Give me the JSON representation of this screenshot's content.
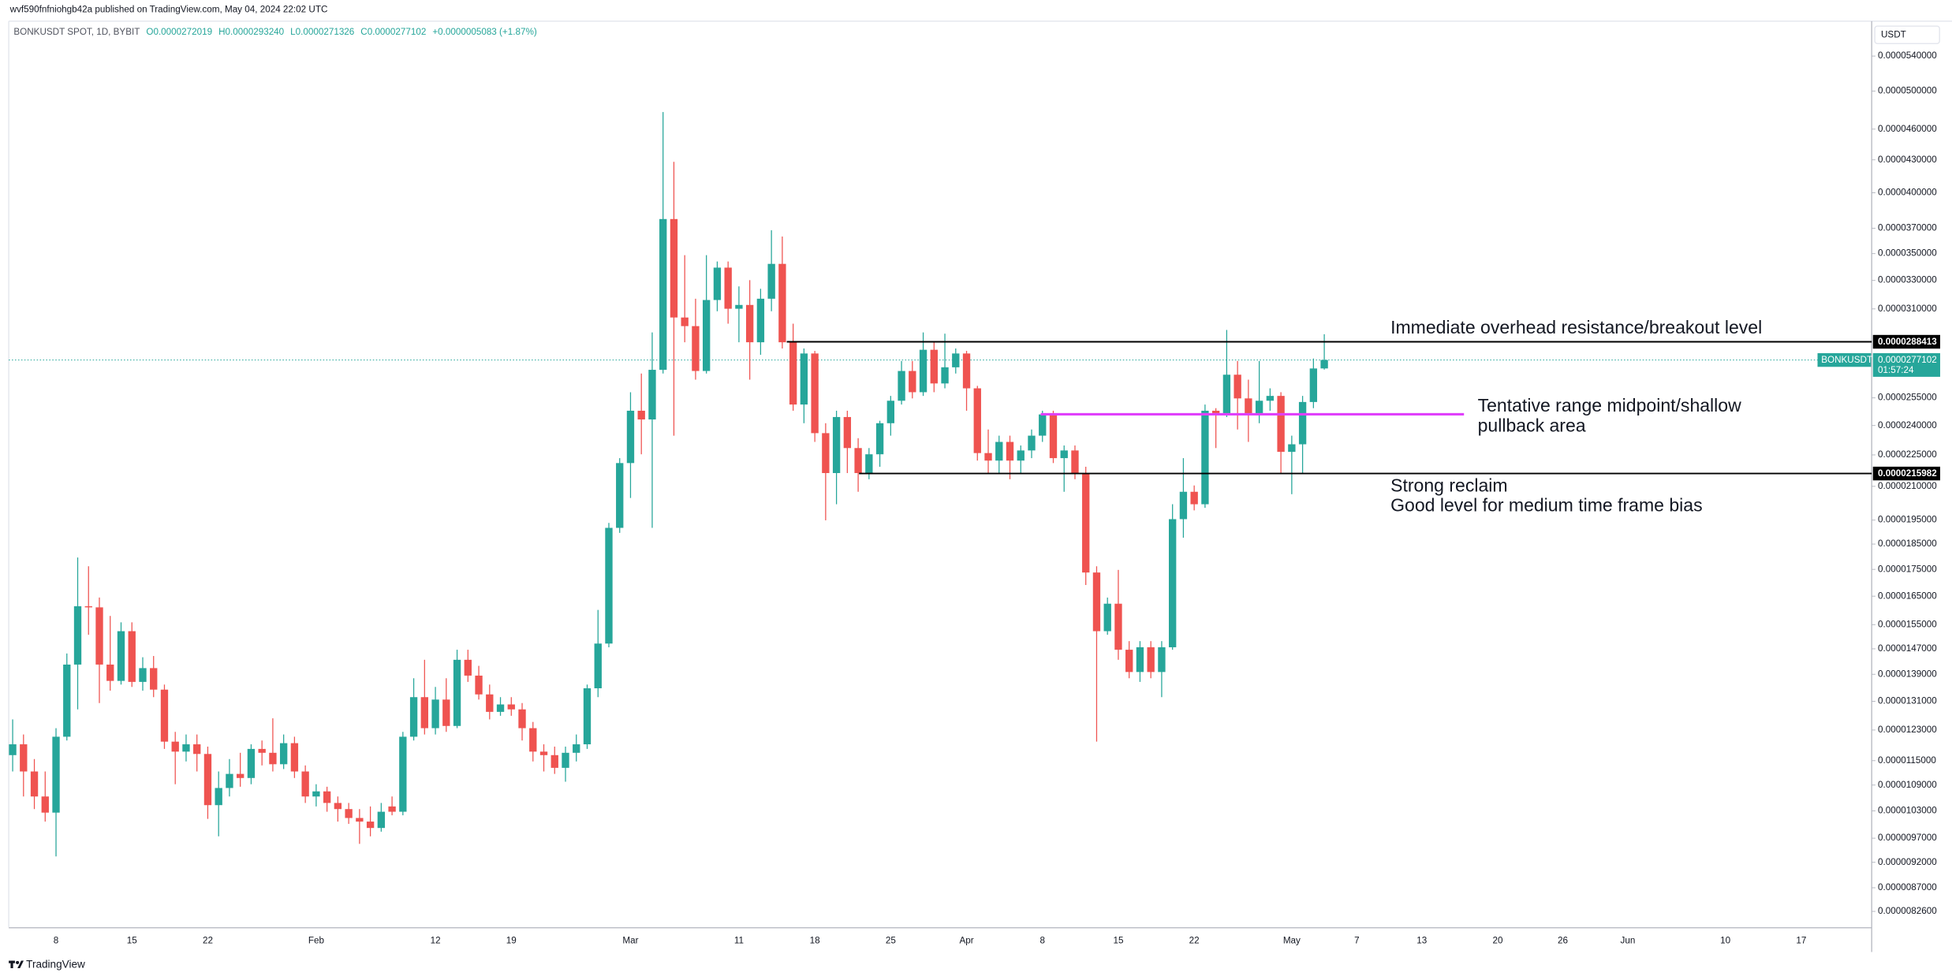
{
  "chart_data": {
    "type": "candlestick",
    "published": "wvf590fnfniohgb42a published on TradingView.com, May 04, 2024 22:02 UTC",
    "title": "BONKUSDT SPOT, 1D, BYBIT",
    "legend_values": [
      "O0.0000272019",
      "H0.0000293240",
      "L0.0000271326",
      "C0.0000277102",
      "+0.0000005083 (+1.87%)"
    ],
    "currency": "USDT",
    "brand": "TradingView",
    "up_color": "#26a69a",
    "down_color": "#ef5350",
    "log": true,
    "grid": false,
    "categories": [
      null,
      null,
      null,
      null,
      "8",
      null,
      null,
      null,
      null,
      null,
      null,
      "15",
      null,
      null,
      null,
      null,
      null,
      null,
      "22",
      null,
      null,
      null,
      null,
      null,
      null,
      null,
      null,
      null,
      "Feb",
      null,
      null,
      null,
      null,
      null,
      null,
      null,
      null,
      null,
      null,
      "12",
      null,
      null,
      null,
      null,
      null,
      null,
      "19",
      null,
      null,
      null,
      null,
      null,
      null,
      null,
      null,
      null,
      null,
      "Mar",
      null,
      null,
      null,
      null,
      null,
      null,
      null,
      null,
      null,
      "11",
      null,
      null,
      null,
      null,
      null,
      null,
      "18",
      null,
      null,
      null,
      null,
      null,
      null,
      "25",
      null,
      null,
      null,
      null,
      null,
      null,
      "Apr",
      null,
      null,
      null,
      null,
      null,
      null,
      "8",
      null,
      null,
      null,
      null,
      null,
      null,
      "15",
      null,
      null,
      null,
      null,
      null,
      null,
      "22",
      null,
      null,
      null,
      null,
      null,
      null,
      null,
      null,
      "May",
      null,
      null,
      null,
      null,
      null,
      "7",
      null,
      null,
      null,
      null,
      null,
      "13",
      null,
      null,
      null,
      null,
      null,
      null,
      "20",
      null,
      null,
      null,
      null,
      null,
      "26",
      null,
      null,
      null,
      null,
      null,
      "Jun",
      null,
      null,
      null,
      null,
      null,
      null,
      null,
      null,
      "10",
      null,
      null,
      null,
      null,
      null,
      null,
      "17",
      null,
      null,
      null,
      null,
      null,
      null
    ],
    "open": [
      1.164e-05,
      1.192e-05,
      1.123e-05,
      1.063e-05,
      1.026e-05,
      1.212e-05,
      1.42e-05,
      1.614e-05,
      1.61e-05,
      1.42e-05,
      1.37e-05,
      1.528e-05,
      1.367e-05,
      1.409e-05,
      1.344e-05,
      1.199e-05,
      1.173e-05,
      1.192e-05,
      1.167e-05,
      1.043e-05,
      1.083e-05,
      1.117e-05,
      1.107e-05,
      1.18e-05,
      1.17e-05,
      1.141e-05,
      1.195e-05,
      1.123e-05,
      1.063e-05,
      1.075e-05,
      1.048e-05,
      1.034e-05,
      1.014e-05,
      1.006e-05,
      9.92e-06,
      1.04e-05,
      1.028e-05,
      1.212e-05,
      1.322e-05,
      1.235e-05,
      1.315e-05,
      1.241e-05,
      1.435e-05,
      1.386e-05,
      1.33e-05,
      1.28e-05,
      1.301e-05,
      1.287e-05,
      1.235e-05,
      1.173e-05,
      1.164e-05,
      1.132e-05,
      1.17e-05,
      1.192e-05,
      1.348e-05,
      1.487e-05,
      1.917e-05,
      2.21e-05,
      2.479e-05,
      2.432e-05,
      2.712e-05,
      3.776e-05,
      3.042e-05,
      2.985e-05,
      2.705e-05,
      3.161e-05,
      3.394e-05,
      3.101e-05,
      3.127e-05,
      2.881e-05,
      3.17e-05,
      3.422e-05,
      2.881e-05,
      2.513e-05,
      2.811e-05,
      2.36e-05,
      2.162e-05,
      2.445e-05,
      2.284e-05,
      2.162e-05,
      2.253e-05,
      2.412e-05,
      2.534e-05,
      2.705e-05,
      2.582e-05,
      2.834e-05,
      2.632e-05,
      2.727e-05,
      2.811e-05,
      2.604e-05,
      2.259e-05,
      2.222e-05,
      2.315e-05,
      2.222e-05,
      2.272e-05,
      2.347e-05,
      2.459e-05,
      2.234e-05,
      2.272e-05,
      2.162e-05,
      1.738e-05,
      1.528e-05,
      1.623e-05,
      1.467e-05,
      1.397e-05,
      1.475e-05,
      1.397e-05,
      1.475e-05,
      1.954e-05,
      2.075e-05,
      2.019e-05,
      2.479e-05,
      2.459e-05,
      2.683e-05,
      2.547e-05,
      2.459e-05,
      2.534e-05,
      2.561e-05,
      2.265e-05,
      2.303e-05,
      2.527e-05,
      2.72019e-05,
      null,
      null,
      null,
      null,
      null,
      null,
      null,
      null,
      null,
      null,
      null,
      null,
      null,
      null,
      null,
      null,
      null,
      null,
      null,
      null,
      null,
      null,
      null,
      null,
      null,
      null,
      null,
      null,
      null,
      null,
      null,
      null,
      null,
      null,
      null,
      null,
      null,
      null,
      null,
      null,
      null,
      null,
      null,
      null,
      null,
      null,
      null,
      null,
      null,
      null
    ],
    "high": [
      1.259e-05,
      1.218e-05,
      1.154e-05,
      1.123e-05,
      1.235e-05,
      1.455e-05,
      1.796e-05,
      1.762e-05,
      1.645e-05,
      1.58e-05,
      1.558e-05,
      1.558e-05,
      1.443e-05,
      1.447e-05,
      1.359e-05,
      1.225e-05,
      1.218e-05,
      1.218e-05,
      1.186e-05,
      1.123e-05,
      1.154e-05,
      1.17e-05,
      1.192e-05,
      1.202e-05,
      1.262e-05,
      1.218e-05,
      1.212e-05,
      1.138e-05,
      1.092e-05,
      1.086e-05,
      1.063e-05,
      1.048e-05,
      1.034e-05,
      1.04e-05,
      1.048e-05,
      1.063e-05,
      1.225e-05,
      1.378e-05,
      1.435e-05,
      1.352e-05,
      1.378e-05,
      1.467e-05,
      1.467e-05,
      1.416e-05,
      1.359e-05,
      1.322e-05,
      1.322e-05,
      1.305e-05,
      1.252e-05,
      1.192e-05,
      1.186e-05,
      1.186e-05,
      1.218e-05,
      1.359e-05,
      1.601e-05,
      1.938e-05,
      2.234e-05,
      2.582e-05,
      2.69e-05,
      2.944e-05,
      4.775e-05,
      4.281e-05,
      3.488e-05,
      3.17e-05,
      3.488e-05,
      3.44e-05,
      3.44e-05,
      3.257e-05,
      3.302e-05,
      3.24e-05,
      3.684e-05,
      3.634e-05,
      3.001e-05,
      2.842e-05,
      2.827e-05,
      2.412e-05,
      2.479e-05,
      2.479e-05,
      2.334e-05,
      2.284e-05,
      2.425e-05,
      2.561e-05,
      2.765e-05,
      2.765e-05,
      2.944e-05,
      2.881e-05,
      2.936e-05,
      2.842e-05,
      2.827e-05,
      2.618e-05,
      2.379e-05,
      2.347e-05,
      2.347e-05,
      2.297e-05,
      2.379e-05,
      2.479e-05,
      2.479e-05,
      2.297e-05,
      2.297e-05,
      2.192e-05,
      1.762e-05,
      1.645e-05,
      1.748e-05,
      1.495e-05,
      1.495e-05,
      1.495e-05,
      1.495e-05,
      2.019e-05,
      2.234e-05,
      2.104e-05,
      2.513e-05,
      2.493e-05,
      2.96e-05,
      2.765e-05,
      2.654e-05,
      2.765e-05,
      2.604e-05,
      2.582e-05,
      2.347e-05,
      2.561e-05,
      2.78e-05,
      2.9324e-05,
      null,
      null,
      null,
      null,
      null,
      null,
      null,
      null,
      null,
      null,
      null,
      null,
      null,
      null,
      null,
      null,
      null,
      null,
      null,
      null,
      null,
      null,
      null,
      null,
      null,
      null,
      null,
      null,
      null,
      null,
      null,
      null,
      null,
      null,
      null,
      null,
      null,
      null,
      null,
      null,
      null,
      null,
      null,
      null,
      null,
      null,
      null,
      null,
      null,
      null
    ],
    "low": [
      1.123e-05,
      1.063e-05,
      1.034e-05,
      1.006e-05,
      9.32e-06,
      1.202e-05,
      1.287e-05,
      1.516e-05,
      1.305e-05,
      1.341e-05,
      1.359e-05,
      1.352e-05,
      1.341e-05,
      1.322e-05,
      1.18e-05,
      1.092e-05,
      1.148e-05,
      1.123e-05,
      1.012e-05,
      9.74e-06,
      1.063e-05,
      1.086e-05,
      1.092e-05,
      1.138e-05,
      1.123e-05,
      1.129e-05,
      1.107e-05,
      1.048e-05,
      1.04e-05,
      1.028e-05,
      1.006e-05,
      1.001e-05,
      9.58e-06,
      9.74e-06,
      9.84e-06,
      1.02e-05,
      1.02e-05,
      1.202e-05,
      1.218e-05,
      1.218e-05,
      1.225e-05,
      1.235e-05,
      1.367e-05,
      1.315e-05,
      1.259e-05,
      1.269e-05,
      1.269e-05,
      1.202e-05,
      1.148e-05,
      1.123e-05,
      1.117e-05,
      1.098e-05,
      1.148e-05,
      1.18e-05,
      1.322e-05,
      1.475e-05,
      1.896e-05,
      2.047e-05,
      2.253e-05,
      1.917e-05,
      2.69e-05,
      2.347e-05,
      2.881e-05,
      2.654e-05,
      2.69e-05,
      3.084e-05,
      3.001e-05,
      2.881e-05,
      2.654e-05,
      2.803e-05,
      3.084e-05,
      2.842e-05,
      2.479e-05,
      2.412e-05,
      2.315e-05,
      1.949e-05,
      2.019e-05,
      2.162e-05,
      2.075e-05,
      2.133e-05,
      2.192e-05,
      2.347e-05,
      2.513e-05,
      2.547e-05,
      2.561e-05,
      2.582e-05,
      2.604e-05,
      2.69e-05,
      2.479e-05,
      2.222e-05,
      2.162e-05,
      2.162e-05,
      2.133e-05,
      2.162e-05,
      2.234e-05,
      2.315e-05,
      2.21e-05,
      2.075e-05,
      2.133e-05,
      1.691e-05,
      1.199e-05,
      1.516e-05,
      1.435e-05,
      1.378e-05,
      1.367e-05,
      1.378e-05,
      1.322e-05,
      1.467e-05,
      1.876e-05,
      1.992e-05,
      2.003e-05,
      2.284e-05,
      2.445e-05,
      2.379e-05,
      2.315e-05,
      2.412e-05,
      2.479e-05,
      2.162e-05,
      2.064e-05,
      2.162e-05,
      2.493e-05,
      2.71326e-05,
      null,
      null,
      null,
      null,
      null,
      null,
      null,
      null,
      null,
      null,
      null,
      null,
      null,
      null,
      null,
      null,
      null,
      null,
      null,
      null,
      null,
      null,
      null,
      null,
      null,
      null,
      null,
      null,
      null,
      null,
      null,
      null,
      null,
      null,
      null,
      null,
      null,
      null,
      null,
      null,
      null,
      null,
      null,
      null,
      null,
      null,
      null,
      null,
      null,
      null
    ],
    "close": [
      1.192e-05,
      1.123e-05,
      1.063e-05,
      1.026e-05,
      1.212e-05,
      1.42e-05,
      1.614e-05,
      1.61e-05,
      1.42e-05,
      1.37e-05,
      1.528e-05,
      1.367e-05,
      1.409e-05,
      1.344e-05,
      1.199e-05,
      1.173e-05,
      1.192e-05,
      1.167e-05,
      1.043e-05,
      1.083e-05,
      1.117e-05,
      1.107e-05,
      1.18e-05,
      1.17e-05,
      1.141e-05,
      1.195e-05,
      1.123e-05,
      1.063e-05,
      1.075e-05,
      1.048e-05,
      1.034e-05,
      1.014e-05,
      1.006e-05,
      9.92e-06,
      1.028e-05,
      1.028e-05,
      1.212e-05,
      1.322e-05,
      1.235e-05,
      1.315e-05,
      1.241e-05,
      1.435e-05,
      1.386e-05,
      1.33e-05,
      1.28e-05,
      1.301e-05,
      1.287e-05,
      1.235e-05,
      1.173e-05,
      1.164e-05,
      1.132e-05,
      1.17e-05,
      1.192e-05,
      1.348e-05,
      1.487e-05,
      1.917e-05,
      2.21e-05,
      2.479e-05,
      2.432e-05,
      2.712e-05,
      3.776e-05,
      3.042e-05,
      2.985e-05,
      2.705e-05,
      3.161e-05,
      3.394e-05,
      3.101e-05,
      3.127e-05,
      2.881e-05,
      3.17e-05,
      3.422e-05,
      2.881e-05,
      2.513e-05,
      2.811e-05,
      2.36e-05,
      2.162e-05,
      2.445e-05,
      2.284e-05,
      2.162e-05,
      2.253e-05,
      2.412e-05,
      2.534e-05,
      2.705e-05,
      2.582e-05,
      2.834e-05,
      2.632e-05,
      2.727e-05,
      2.811e-05,
      2.604e-05,
      2.259e-05,
      2.222e-05,
      2.315e-05,
      2.222e-05,
      2.272e-05,
      2.347e-05,
      2.459e-05,
      2.234e-05,
      2.272e-05,
      2.162e-05,
      1.738e-05,
      1.528e-05,
      1.623e-05,
      1.467e-05,
      1.397e-05,
      1.475e-05,
      1.397e-05,
      1.475e-05,
      1.954e-05,
      2.075e-05,
      2.019e-05,
      2.479e-05,
      2.459e-05,
      2.683e-05,
      2.547e-05,
      2.459e-05,
      2.534e-05,
      2.561e-05,
      2.265e-05,
      2.303e-05,
      2.527e-05,
      2.72e-05,
      2.77102e-05,
      null,
      null,
      null,
      null,
      null,
      null,
      null,
      null,
      null,
      null,
      null,
      null,
      null,
      null,
      null,
      null,
      null,
      null,
      null,
      null,
      null,
      null,
      null,
      null,
      null,
      null,
      null,
      null,
      null,
      null,
      null,
      null,
      null,
      null,
      null,
      null,
      null,
      null,
      null,
      null,
      null,
      null,
      null,
      null,
      null,
      null,
      null,
      null,
      null,
      null
    ],
    "ylim": [
      7.98e-06,
      5.83e-05
    ],
    "yticks": [
      {
        "value": 5.4e-05,
        "label": "0.0000540000"
      },
      {
        "value": 5e-05,
        "label": "0.0000500000"
      },
      {
        "value": 4.6e-05,
        "label": "0.0000460000"
      },
      {
        "value": 4.3e-05,
        "label": "0.0000430000"
      },
      {
        "value": 4e-05,
        "label": "0.0000400000"
      },
      {
        "value": 3.7e-05,
        "label": "0.0000370000"
      },
      {
        "value": 3.5e-05,
        "label": "0.0000350000"
      },
      {
        "value": 3.3e-05,
        "label": "0.0000330000"
      },
      {
        "value": 3.1e-05,
        "label": "0.0000310000"
      },
      {
        "value": 2.55e-05,
        "label": "0.0000255000"
      },
      {
        "value": 2.4e-05,
        "label": "0.0000240000"
      },
      {
        "value": 2.25e-05,
        "label": "0.0000225000"
      },
      {
        "value": 2.1e-05,
        "label": "0.0000210000"
      },
      {
        "value": 1.95e-05,
        "label": "0.0000195000"
      },
      {
        "value": 1.85e-05,
        "label": "0.0000185000"
      },
      {
        "value": 1.75e-05,
        "label": "0.0000175000"
      },
      {
        "value": 1.65e-05,
        "label": "0.0000165000"
      },
      {
        "value": 1.55e-05,
        "label": "0.0000155000"
      },
      {
        "value": 1.47e-05,
        "label": "0.0000147000"
      },
      {
        "value": 1.39e-05,
        "label": "0.0000139000"
      },
      {
        "value": 1.31e-05,
        "label": "0.0000131000"
      },
      {
        "value": 1.23e-05,
        "label": "0.0000123000"
      },
      {
        "value": 1.15e-05,
        "label": "0.0000115000"
      },
      {
        "value": 1.09e-05,
        "label": "0.0000109000"
      },
      {
        "value": 1.03e-05,
        "label": "0.0000103000"
      },
      {
        "value": 9.7e-06,
        "label": "0.0000097000"
      },
      {
        "value": 9.2e-06,
        "label": "0.0000092000"
      },
      {
        "value": 8.7e-06,
        "label": "0.0000087000"
      },
      {
        "value": 8.26e-06,
        "label": "0.0000082600"
      }
    ],
    "hlines": [
      {
        "value": 2.88413e-05,
        "label": "0.0000288413",
        "color": "#000000"
      },
      {
        "value": 2.15982e-05,
        "label": "0.0000215982",
        "color": "#000000"
      },
      {
        "value": 2.46e-05,
        "color": "#e040fb"
      }
    ],
    "last": {
      "value": 2.77102e-05,
      "label": "0.0000277102",
      "countdown": "01:57:24",
      "symbol": "BONKUSDT",
      "color": "#26a69a"
    },
    "annotations": [
      {
        "lines": [
          "Immediate overhead resistance/breakout level"
        ]
      },
      {
        "lines": [
          "Tentative range midpoint/shallow",
          "pullback area"
        ]
      },
      {
        "lines": [
          "Strong reclaim",
          "Good level for medium time frame bias"
        ]
      }
    ]
  }
}
